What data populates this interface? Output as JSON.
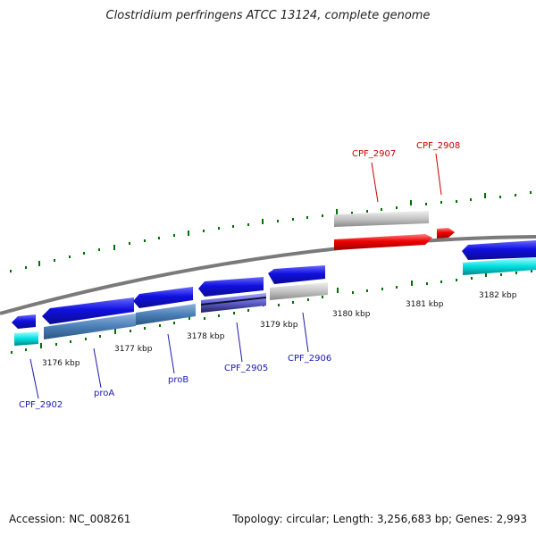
{
  "title": "Clostridium perfringens ATCC 13124, complete genome",
  "footer": {
    "accession": "Accession: NC_008261",
    "topology": "Topology: circular; Length: 3,256,683 bp; Genes: 2,993"
  },
  "kbp_labels": [
    "3176 kbp",
    "3177 kbp",
    "3178 kbp",
    "3179 kbp",
    "3180 kbp",
    "3181 kbp",
    "3182 kbp"
  ],
  "gene_labels": {
    "cpf_2902": "CPF_2902",
    "proA": "proA",
    "proB": "proB",
    "cpf_2905": "CPF_2905",
    "cpf_2906": "CPF_2906",
    "cpf_2907": "CPF_2907",
    "cpf_2908": "CPF_2908"
  },
  "colors": {
    "gene_blue": "#1010e0",
    "cds_cyan": "#00d8d8",
    "cds_steel": "#4a7fb8",
    "gene_gray": "#c0c0c0",
    "gene_red": "#ee0000",
    "tick_green": "#007000",
    "backbone": "#7a7a7a",
    "label_blue": "#1a1ab0",
    "label_red": "#cc0000"
  }
}
